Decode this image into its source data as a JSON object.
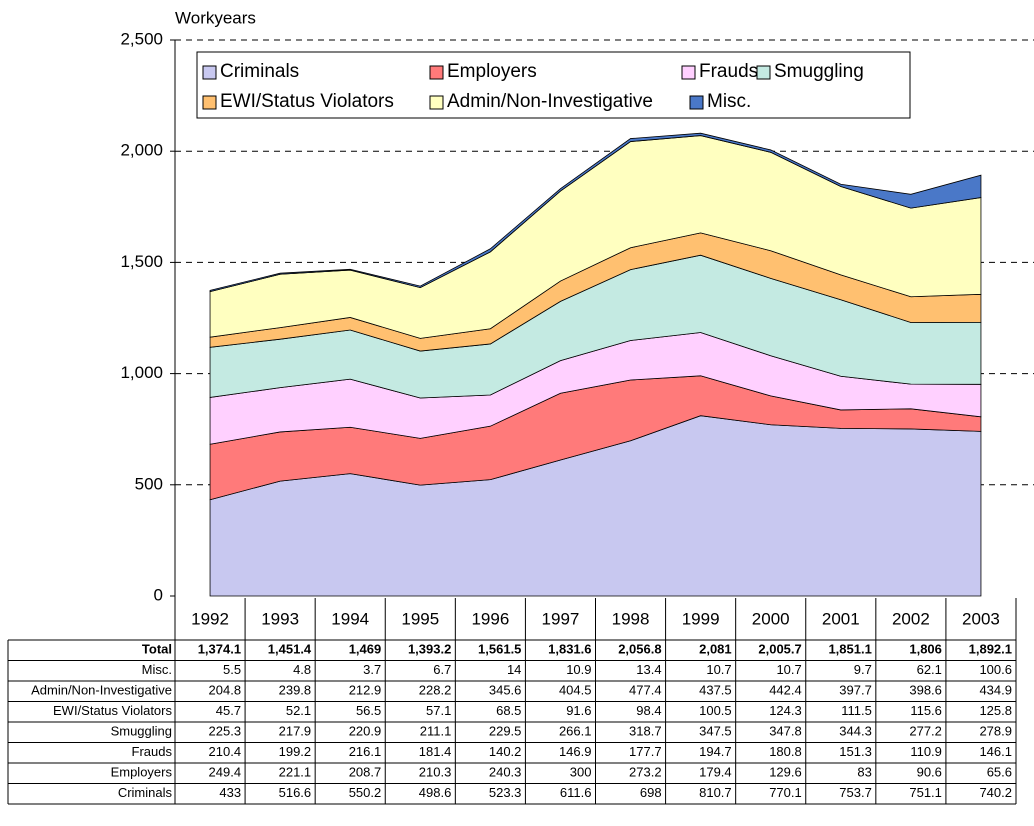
{
  "chart_data": {
    "type": "stacked-area",
    "y_label": "Workyears",
    "categories": [
      "1992",
      "1993",
      "1994",
      "1995",
      "1996",
      "1997",
      "1998",
      "1999",
      "2000",
      "2001",
      "2002",
      "2003"
    ],
    "ylim": [
      0,
      2500
    ],
    "yticks": [
      0,
      500,
      {
        "value": 1000,
        "label": "1,000"
      },
      {
        "value": 1500,
        "label": "1,500"
      },
      {
        "value": 2000,
        "label": "2,000"
      },
      {
        "value": 2500,
        "label": "2,500"
      }
    ],
    "grid": true,
    "series": [
      {
        "name": "Criminals",
        "color": "#c8c8f0",
        "values": [
          433,
          516.6,
          550.2,
          498.6,
          523.3,
          611.6,
          698,
          810.7,
          770.1,
          753.7,
          751.1,
          740.2
        ]
      },
      {
        "name": "Employers",
        "color": "#ff7a7a",
        "values": [
          249.4,
          221.1,
          208.7,
          210.3,
          240.3,
          300,
          273.2,
          179.4,
          129.6,
          83,
          90.6,
          65.6
        ]
      },
      {
        "name": "Frauds",
        "color": "#ffd0ff",
        "values": [
          210.4,
          199.2,
          216.1,
          181.4,
          140.2,
          146.9,
          177.7,
          194.7,
          180.8,
          151.3,
          110.9,
          146.1
        ]
      },
      {
        "name": "Smuggling",
        "color": "#c4eae2",
        "values": [
          225.3,
          217.9,
          220.9,
          211.1,
          229.5,
          266.1,
          318.7,
          347.5,
          347.8,
          344.3,
          277.2,
          278.9
        ]
      },
      {
        "name": "EWI/Status Violators",
        "color": "#ffc070",
        "values": [
          45.7,
          52.1,
          56.5,
          57.1,
          68.5,
          91.6,
          98.4,
          100.5,
          124.3,
          111.5,
          115.6,
          125.8
        ]
      },
      {
        "name": "Admin/Non-Investigative",
        "color": "#ffffc0",
        "values": [
          204.8,
          239.8,
          212.9,
          228.2,
          345.6,
          404.5,
          477.4,
          437.5,
          442.4,
          397.7,
          398.6,
          434.9
        ]
      },
      {
        "name": "Misc.",
        "color": "#4a78c8",
        "values": [
          5.5,
          4.8,
          3.7,
          6.7,
          14,
          10.9,
          13.4,
          10.7,
          10.7,
          9.7,
          62.1,
          100.6
        ]
      }
    ],
    "total": {
      "name": "Total",
      "values": [
        1374.1,
        1451.4,
        1469,
        1393.2,
        1561.5,
        1831.6,
        2056.8,
        2081,
        2005.7,
        1851.1,
        1806,
        1892.1
      ],
      "value_labels": [
        "1,374.1",
        "1,451.4",
        "1,469",
        "1,393.2",
        "1,561.5",
        "1,831.6",
        "2,056.8",
        "2,081",
        "2,005.7",
        "1,851.1",
        "1,806",
        "1,892.1"
      ]
    }
  }
}
